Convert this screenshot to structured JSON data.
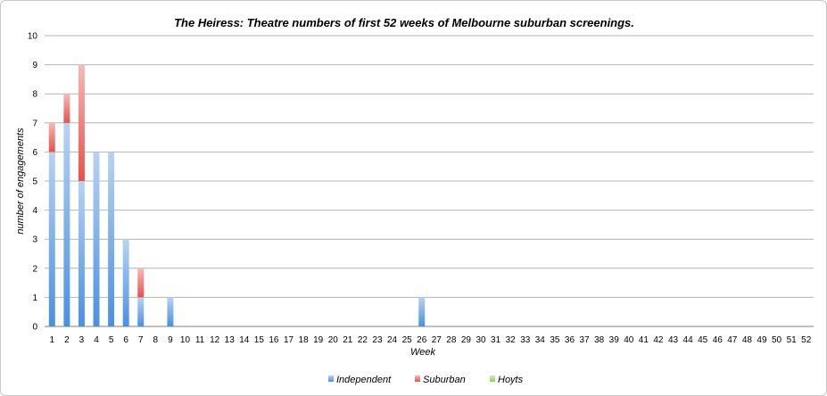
{
  "chart_data": {
    "type": "bar",
    "stacked": true,
    "title": "The Heiress: Theatre numbers of first 52 weeks of Melbourne suburban screenings.",
    "xlabel": "Week",
    "ylabel": "number of engagements",
    "ylim": [
      0,
      10
    ],
    "yticks": [
      "0",
      "1",
      "2",
      "3",
      "4",
      "5",
      "6",
      "7",
      "8",
      "9",
      "10"
    ],
    "grid": true,
    "legend": "bottom",
    "categories": [
      "1",
      "2",
      "3",
      "4",
      "5",
      "6",
      "7",
      "8",
      "9",
      "10",
      "11",
      "12",
      "13",
      "14",
      "15",
      "16",
      "17",
      "18",
      "19",
      "20",
      "21",
      "22",
      "23",
      "24",
      "25",
      "26",
      "27",
      "28",
      "29",
      "30",
      "31",
      "32",
      "33",
      "34",
      "35",
      "36",
      "37",
      "38",
      "39",
      "40",
      "41",
      "42",
      "43",
      "44",
      "45",
      "46",
      "47",
      "48",
      "49",
      "50",
      "51",
      "52"
    ],
    "series": [
      {
        "name": "Independent",
        "color": "#4a90e2",
        "values": [
          6,
          7,
          5,
          6,
          6,
          3,
          1,
          0,
          1,
          0,
          0,
          0,
          0,
          0,
          0,
          0,
          0,
          0,
          0,
          0,
          0,
          0,
          0,
          0,
          0,
          1,
          0,
          0,
          0,
          0,
          0,
          0,
          0,
          0,
          0,
          0,
          0,
          0,
          0,
          0,
          0,
          0,
          0,
          0,
          0,
          0,
          0,
          0,
          0,
          0,
          0,
          0
        ]
      },
      {
        "name": "Suburban",
        "color": "#e8504b",
        "values": [
          1,
          1,
          4,
          0,
          0,
          0,
          1,
          0,
          0,
          0,
          0,
          0,
          0,
          0,
          0,
          0,
          0,
          0,
          0,
          0,
          0,
          0,
          0,
          0,
          0,
          0,
          0,
          0,
          0,
          0,
          0,
          0,
          0,
          0,
          0,
          0,
          0,
          0,
          0,
          0,
          0,
          0,
          0,
          0,
          0,
          0,
          0,
          0,
          0,
          0,
          0,
          0
        ]
      },
      {
        "name": "Hoyts",
        "color": "#8fd14f",
        "values": [
          0,
          0,
          0,
          0,
          0,
          0,
          0,
          0,
          0,
          0,
          0,
          0,
          0,
          0,
          0,
          0,
          0,
          0,
          0,
          0,
          0,
          0,
          0,
          0,
          0,
          0,
          0,
          0,
          0,
          0,
          0,
          0,
          0,
          0,
          0,
          0,
          0,
          0,
          0,
          0,
          0,
          0,
          0,
          0,
          0,
          0,
          0,
          0,
          0,
          0,
          0,
          0
        ]
      }
    ]
  }
}
